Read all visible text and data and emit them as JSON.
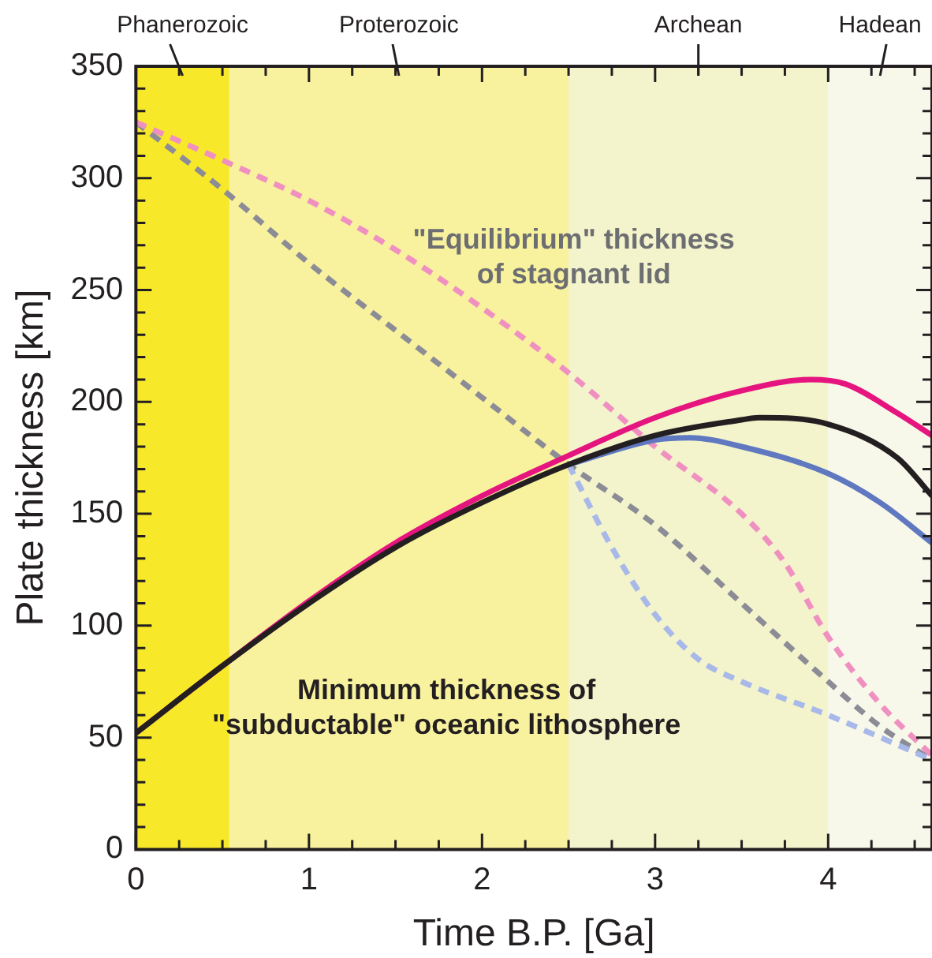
{
  "chart_data": {
    "type": "line",
    "xlabel": "Time B.P. [Ga]",
    "ylabel": "Plate thickness [km]",
    "xlim": [
      0,
      4.6
    ],
    "ylim": [
      0,
      350
    ],
    "xticks": [
      0,
      {
        "value": 0.25,
        "label": null
      },
      {
        "value": 0.5,
        "label": null
      },
      {
        "value": 0.75,
        "label": null
      },
      1,
      {
        "value": 1.25,
        "label": null
      },
      {
        "value": 1.5,
        "label": null
      },
      {
        "value": 1.75,
        "label": null
      },
      2,
      {
        "value": 2.25,
        "label": null
      },
      {
        "value": 2.5,
        "label": null
      },
      {
        "value": 2.75,
        "label": null
      },
      3,
      {
        "value": 3.25,
        "label": null
      },
      {
        "value": 3.5,
        "label": null
      },
      {
        "value": 3.75,
        "label": null
      },
      4,
      {
        "value": 4.25,
        "label": null
      },
      {
        "value": 4.5,
        "label": null
      }
    ],
    "yticks": [
      0,
      {
        "value": 10,
        "label": null
      },
      {
        "value": 20,
        "label": null
      },
      {
        "value": 30,
        "label": null
      },
      {
        "value": 40,
        "label": null
      },
      50,
      {
        "value": 60,
        "label": null
      },
      {
        "value": 70,
        "label": null
      },
      {
        "value": 80,
        "label": null
      },
      {
        "value": 90,
        "label": null
      },
      100,
      {
        "value": 110,
        "label": null
      },
      {
        "value": 120,
        "label": null
      },
      {
        "value": 130,
        "label": null
      },
      {
        "value": 140,
        "label": null
      },
      150,
      {
        "value": 160,
        "label": null
      },
      {
        "value": 170,
        "label": null
      },
      {
        "value": 180,
        "label": null
      },
      {
        "value": 190,
        "label": null
      },
      200,
      {
        "value": 210,
        "label": null
      },
      {
        "value": 220,
        "label": null
      },
      {
        "value": 230,
        "label": null
      },
      {
        "value": 240,
        "label": null
      },
      250,
      {
        "value": 260,
        "label": null
      },
      {
        "value": 270,
        "label": null
      },
      {
        "value": 280,
        "label": null
      },
      {
        "value": 290,
        "label": null
      },
      300,
      {
        "value": 310,
        "label": null
      },
      {
        "value": 320,
        "label": null
      },
      {
        "value": 330,
        "label": null
      },
      {
        "value": 340,
        "label": null
      },
      350
    ],
    "grid": false,
    "legend": false,
    "marker": "none",
    "bands": [
      {
        "axis": "x",
        "from": 0,
        "to": 0.54,
        "label": "Phanerozoic",
        "color": "#f7e92a"
      },
      {
        "axis": "x",
        "from": 0.54,
        "to": 2.5,
        "label": "Proterozoic",
        "color": "#f8f19e"
      },
      {
        "axis": "x",
        "from": 2.5,
        "to": 4,
        "label": "Archean",
        "color": "#f3f3cc"
      },
      {
        "axis": "x",
        "from": 4,
        "to": 4.6,
        "label": "Hadean",
        "color": "#f8f8ea"
      }
    ],
    "series": [
      {
        "color": "#8c8c96",
        "line_style": "dashed",
        "x": [
          0,
          0.5,
          1,
          1.5,
          2,
          2.5,
          3,
          3.5,
          4,
          4.3,
          4.6
        ],
        "values": [
          325,
          295,
          262,
          232,
          202,
          172,
          145,
          110,
          75,
          55,
          40
        ]
      },
      {
        "color": "#a8b8e8",
        "line_style": "dashed",
        "x": [
          2.5,
          2.75,
          3,
          3.25,
          3.5,
          4,
          4.6
        ],
        "values": [
          172,
          135,
          105,
          85,
          75,
          60,
          40
        ]
      },
      {
        "color": "#f090c0",
        "line_style": "dashed",
        "x": [
          0,
          0.5,
          1,
          1.5,
          2,
          2.5,
          3,
          3.5,
          3.75,
          4,
          4.3,
          4.6
        ],
        "values": [
          325,
          308,
          290,
          268,
          242,
          213,
          180,
          150,
          128,
          95,
          65,
          42
        ]
      },
      {
        "color": "#5f78c0",
        "line_style": "solid",
        "x": [
          2.5,
          3,
          3.2,
          3.5,
          4,
          4.3,
          4.6
        ],
        "values": [
          172,
          183,
          184,
          180,
          168,
          155,
          137
        ]
      },
      {
        "color": "#e6147f",
        "line_style": "solid",
        "x": [
          0,
          0.5,
          1,
          1.5,
          2,
          2.5,
          3,
          3.5,
          3.9,
          4.1,
          4.4,
          4.6
        ],
        "values": [
          52,
          82,
          111,
          137,
          158,
          176,
          193,
          205,
          210,
          208,
          195,
          185
        ]
      },
      {
        "color": "#231f20",
        "line_style": "solid",
        "x": [
          0,
          0.5,
          1,
          1.5,
          2,
          2.5,
          3,
          3.5,
          3.6,
          4,
          4.4,
          4.6
        ],
        "values": [
          52,
          82,
          110,
          135,
          155,
          172,
          185,
          192,
          193,
          190,
          175,
          158
        ]
      }
    ],
    "annotations": [
      "\"Equilibrium\" thickness\nof stagnant lid",
      "Minimum thickness of\n\"subductable\" oceanic lithosphere"
    ]
  }
}
